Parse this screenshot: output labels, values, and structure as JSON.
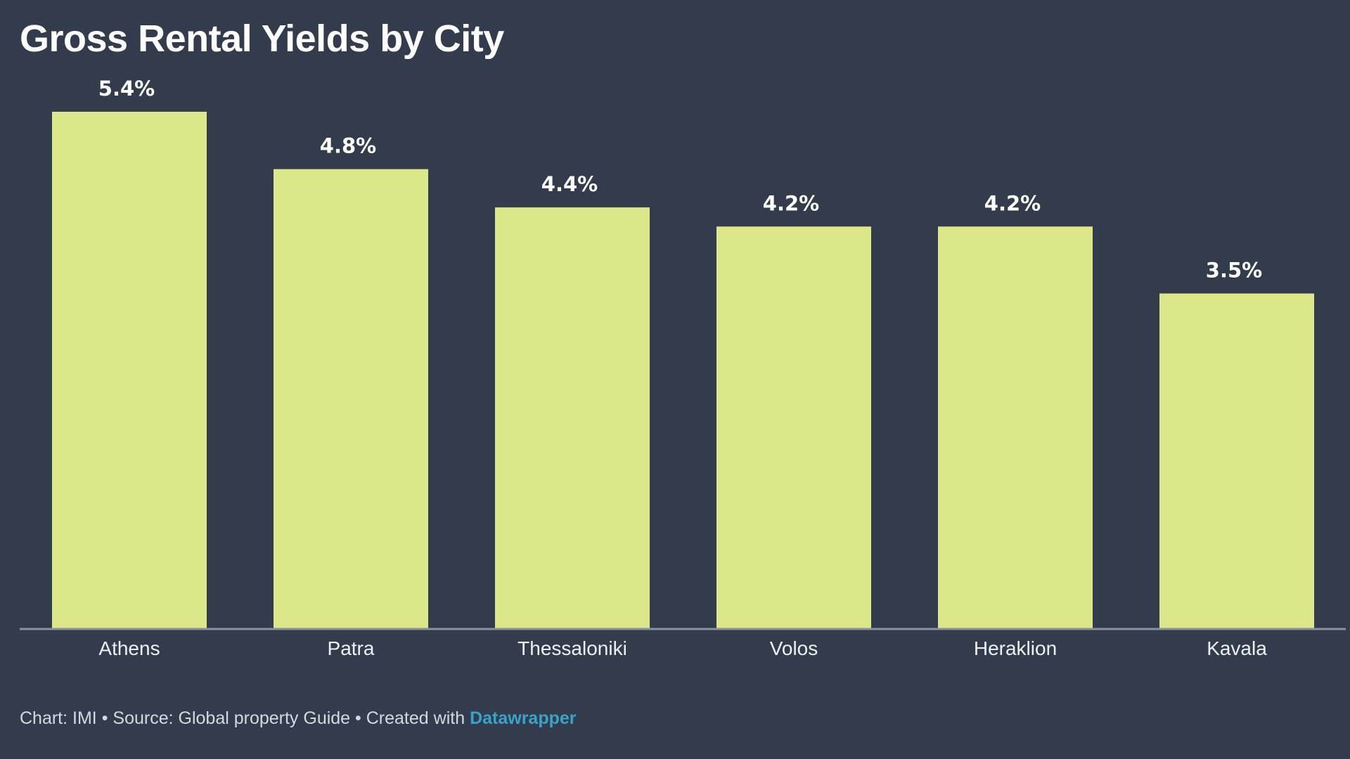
{
  "header": {
    "title": "Gross Rental Yields by City"
  },
  "footer": {
    "chart_credit": "Chart: IMI",
    "separator": " • ",
    "source": "Source: Global property Guide",
    "created_with": "Created with",
    "brand": "Datawrapper"
  },
  "colors": {
    "background": "#323c4c",
    "bar": "#dce78a",
    "axis": "#8a929e",
    "brand": "#3aa3c9"
  },
  "chart_data": {
    "type": "bar",
    "title": "Gross Rental Yields by City",
    "xlabel": "",
    "ylabel": "",
    "ylim": [
      0,
      5.4
    ],
    "grid": false,
    "legend": "none",
    "categories": [
      "Athens",
      "Patra",
      "Thessaloniki",
      "Volos",
      "Heraklion",
      "Kavala"
    ],
    "values": [
      5.4,
      4.8,
      4.4,
      4.2,
      4.2,
      3.5
    ],
    "data_labels": [
      "5.4%",
      "4.8%",
      "4.4%",
      "4.2%",
      "4.2%",
      "3.5%"
    ]
  }
}
